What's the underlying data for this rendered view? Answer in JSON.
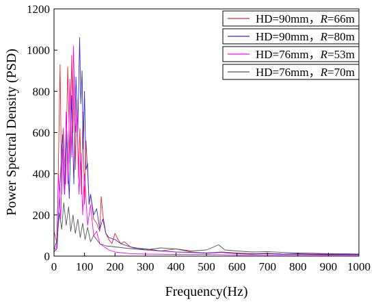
{
  "chart_data": {
    "type": "line",
    "title": "",
    "xlabel": "Frequency(Hz)",
    "ylabel": "Power Spectral Density (PSD)",
    "xlim": [
      0,
      1000
    ],
    "ylim": [
      0,
      1200
    ],
    "xticks": [
      0,
      100,
      200,
      300,
      400,
      500,
      600,
      700,
      800,
      900,
      1000
    ],
    "yticks": [
      0,
      200,
      400,
      600,
      800,
      1000,
      1200
    ],
    "grid": false,
    "legend_position": "top-right",
    "series": [
      {
        "name": "HD=90mm，R=66m",
        "label_parts": [
          "HD=90mm，",
          "R",
          "=66m"
        ],
        "color": "#e8262a",
        "x": [
          0,
          10,
          20,
          25,
          30,
          38,
          45,
          52,
          58,
          62,
          66,
          70,
          75,
          80,
          85,
          90,
          95,
          100,
          105,
          110,
          115,
          120,
          130,
          140,
          150,
          155,
          160,
          170,
          180,
          190,
          200,
          210,
          220,
          230,
          250,
          270,
          300,
          350,
          400,
          450,
          500,
          550,
          600,
          650,
          700,
          750,
          800,
          850,
          900,
          950,
          1000
        ],
        "y": [
          120,
          60,
          930,
          300,
          620,
          350,
          920,
          450,
          975,
          600,
          880,
          420,
          760,
          380,
          620,
          300,
          700,
          250,
          560,
          420,
          260,
          300,
          180,
          160,
          120,
          290,
          200,
          110,
          80,
          60,
          110,
          80,
          60,
          70,
          45,
          40,
          30,
          25,
          35,
          20,
          15,
          20,
          15,
          12,
          14,
          10,
          12,
          10,
          10,
          8,
          8
        ]
      },
      {
        "name": "HD=90mm，R=80m",
        "label_parts": [
          "HD=90mm，",
          "R",
          "=80m"
        ],
        "color": "#2b2bd8",
        "x": [
          0,
          10,
          20,
          28,
          35,
          42,
          50,
          58,
          65,
          72,
          78,
          84,
          88,
          92,
          96,
          100,
          105,
          110,
          115,
          120,
          130,
          140,
          150,
          160,
          170,
          180,
          200,
          220,
          240,
          260,
          300,
          350,
          400,
          450,
          500,
          550,
          600,
          650,
          700,
          750,
          800,
          850,
          900,
          950,
          1000
        ],
        "y": [
          20,
          40,
          350,
          590,
          300,
          610,
          280,
          780,
          350,
          870,
          600,
          1060,
          740,
          900,
          520,
          800,
          420,
          450,
          250,
          300,
          200,
          230,
          130,
          180,
          110,
          90,
          80,
          60,
          50,
          40,
          35,
          25,
          20,
          18,
          15,
          18,
          12,
          10,
          12,
          10,
          10,
          8,
          8,
          8,
          8
        ]
      },
      {
        "name": "HD=76mm，R=53m",
        "label_parts": [
          "HD=76mm，",
          "R",
          "=53m"
        ],
        "color": "#ff00ff",
        "x": [
          0,
          8,
          15,
          22,
          28,
          34,
          40,
          46,
          52,
          58,
          64,
          70,
          76,
          82,
          88,
          94,
          100,
          110,
          120,
          130,
          140,
          150,
          160,
          180,
          200,
          250,
          300,
          400,
          500,
          600,
          700,
          800,
          900,
          1000
        ],
        "y": [
          40,
          30,
          400,
          180,
          520,
          300,
          700,
          350,
          860,
          480,
          1020,
          600,
          700,
          300,
          500,
          200,
          400,
          150,
          250,
          100,
          120,
          60,
          50,
          30,
          20,
          12,
          10,
          8,
          8,
          6,
          6,
          6,
          5,
          5
        ]
      },
      {
        "name": "HD=76mm，R=70m",
        "label_parts": [
          "HD=76mm，",
          "R",
          "=70m"
        ],
        "color": "#555555",
        "x": [
          0,
          10,
          18,
          25,
          32,
          40,
          48,
          55,
          62,
          70,
          78,
          86,
          94,
          102,
          110,
          120,
          130,
          150,
          170,
          200,
          230,
          260,
          300,
          350,
          400,
          450,
          500,
          540,
          560,
          600,
          650,
          700,
          750,
          800,
          850,
          900,
          950,
          1000
        ],
        "y": [
          30,
          80,
          210,
          130,
          260,
          150,
          240,
          120,
          200,
          110,
          180,
          90,
          160,
          80,
          140,
          70,
          100,
          60,
          50,
          45,
          40,
          35,
          30,
          40,
          35,
          25,
          30,
          55,
          30,
          25,
          20,
          22,
          18,
          15,
          14,
          12,
          12,
          10
        ]
      }
    ]
  }
}
